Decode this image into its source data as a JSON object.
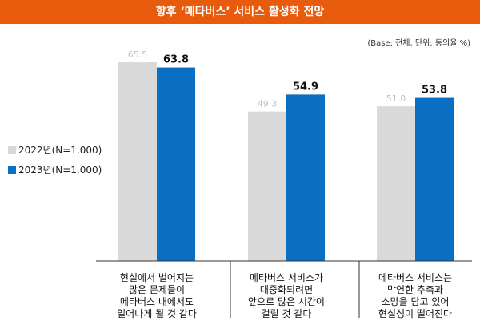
{
  "title": "향후 ‘메타버스’ 서비스 활성화 전망",
  "base_note": "(Base: 전체, 단위: 동의율 %)",
  "colors": {
    "title_bg": "#e85a0c",
    "series_2022": "#d9d9d9",
    "series_2023": "#0a6fc2"
  },
  "chart_data": {
    "type": "bar",
    "title": "향후 ‘메타버스’ 서비스 활성화 전망",
    "unit_note": "(Base: 전체, 단위: 동의율 %)",
    "categories": [
      [
        "현실에서 벌어지는",
        "많은 문제들이",
        "메타버스 내에서도",
        "일어나게 될 것 같다"
      ],
      [
        "메타버스 서비스가",
        "대중화되려면",
        "앞으로 많은 시간이",
        "걸릴 것 같다"
      ],
      [
        "메타버스 서비스는",
        "막연한 추측과",
        "소망을 담고 있어",
        "현실성이 떨어진다"
      ]
    ],
    "series": [
      {
        "name": "2022년(N=1,000)",
        "values": [
          65.5,
          49.3,
          51.0
        ],
        "labels": [
          "65.5",
          "49.3",
          "51.0"
        ],
        "color": "#d9d9d9"
      },
      {
        "name": "2023년(N=1,000)",
        "values": [
          63.8,
          54.9,
          53.8
        ],
        "labels": [
          "63.8",
          "54.9",
          "53.8"
        ],
        "color": "#0a6fc2"
      }
    ],
    "ylim": [
      0,
      75
    ],
    "grid": false,
    "legend_position": "left"
  }
}
